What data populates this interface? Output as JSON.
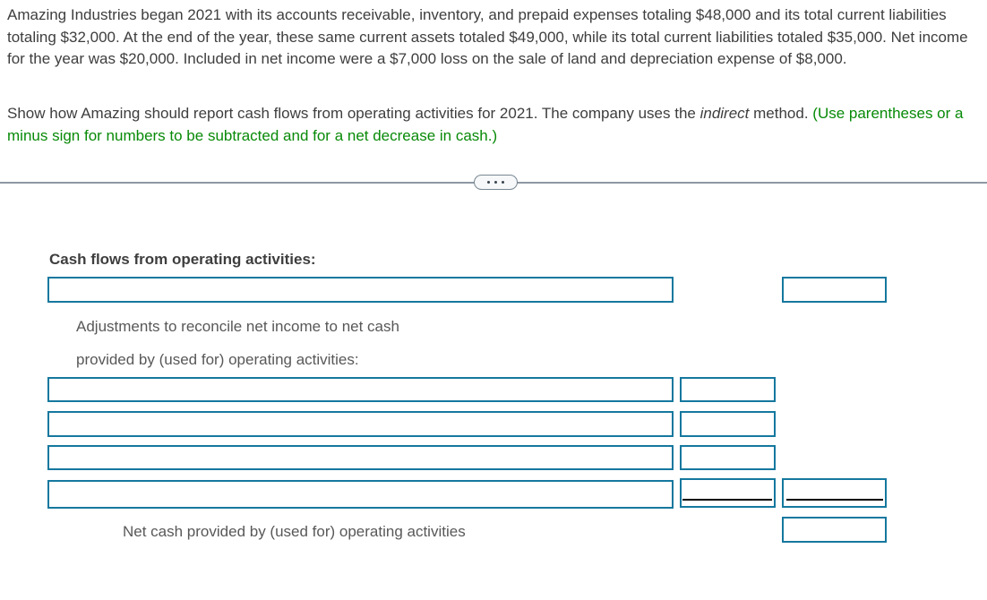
{
  "problem": {
    "paragraph1": "Amazing Industries began 2021 with its accounts receivable, inventory, and prepaid expenses totaling $48,000 and its total current liabilities totaling $32,000. At the end of the year, these same current assets totaled $49,000, while its total current liabilities totaled $35,000. Net income for the year was $20,000. Included in net income were a $7,000 loss on the sale of land and depreciation expense of $8,000.",
    "paragraph2_pre": "Show how Amazing should report cash flows from operating activities for 2021. The company uses the ",
    "paragraph2_italic": "indirect",
    "paragraph2_mid": " method. ",
    "paragraph2_green": "(Use parentheses or a minus sign for numbers to be subtracted and for a net decrease in cash.)"
  },
  "divider": {
    "toggle_icon": "ellipsis-icon"
  },
  "form": {
    "section_header": "Cash flows from operating activities:",
    "adjustments_label_line1": "Adjustments to reconcile net income to net cash",
    "adjustments_label_line2": "provided by (used for) operating activities:",
    "net_cash_label": "Net cash provided by (used for) operating activities",
    "values": {
      "operating_line_desc": "",
      "operating_line_amount": "",
      "adjustment1_desc": "",
      "adjustment1_amount": "",
      "adjustment2_desc": "",
      "adjustment2_amount": "",
      "adjustment3_desc": "",
      "adjustment3_amount": "",
      "adjustment4_desc": "",
      "adjustment4_amount": "",
      "adjustment4_total": "",
      "net_cash_amount": ""
    }
  },
  "colors": {
    "input_border_teal": "#15789E",
    "instruction_green": "#088A08",
    "body_text": "#3E3E3E",
    "label_gray": "#585858",
    "divider_gray": "#8D98A2",
    "sum_rule_black": "#000000"
  }
}
